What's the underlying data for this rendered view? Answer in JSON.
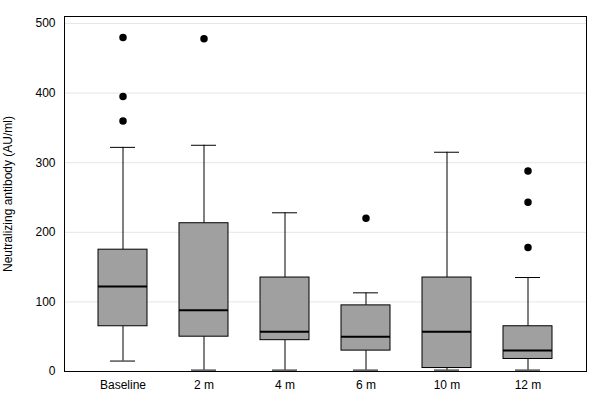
{
  "chart_data": {
    "type": "box",
    "categories": [
      "Baseline",
      "2 m",
      "4 m",
      "6 m",
      "10 m",
      "12 m"
    ],
    "boxes": [
      {
        "q1": 65,
        "median": 122,
        "q3": 175,
        "whislo": 15,
        "whishi": 322,
        "fliers": [
          360,
          395,
          480
        ]
      },
      {
        "q1": 50,
        "median": 88,
        "q3": 213,
        "whislo": 2,
        "whishi": 325,
        "fliers": [
          478
        ]
      },
      {
        "q1": 45,
        "median": 57,
        "q3": 135,
        "whislo": 2,
        "whishi": 228,
        "fliers": []
      },
      {
        "q1": 30,
        "median": 50,
        "q3": 95,
        "whislo": 2,
        "whishi": 113,
        "fliers": [
          220
        ]
      },
      {
        "q1": 5,
        "median": 57,
        "q3": 135,
        "whislo": 2,
        "whishi": 315,
        "fliers": []
      },
      {
        "q1": 18,
        "median": 30,
        "q3": 65,
        "whislo": 2,
        "whishi": 135,
        "fliers": [
          178,
          243,
          288
        ]
      }
    ],
    "ylabel": "Neutralizing antibody (AU/ml)",
    "ylim": [
      0,
      510
    ],
    "yticks": [
      0,
      100,
      200,
      300,
      400,
      500
    ],
    "color": "#a0a0a0",
    "grid": true
  }
}
